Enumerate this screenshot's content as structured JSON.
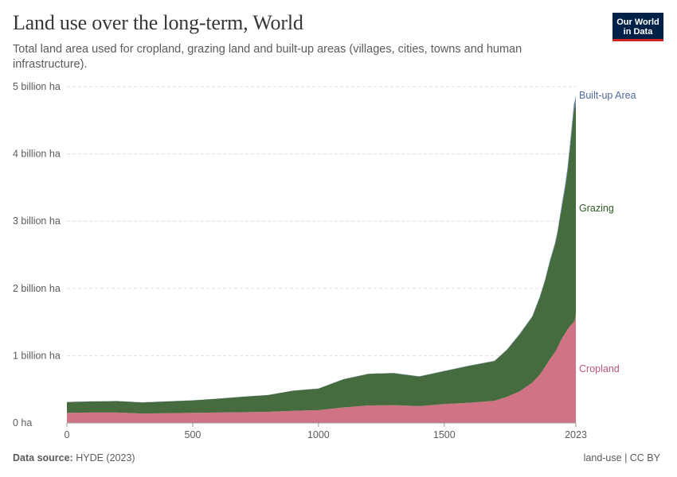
{
  "header": {
    "title": "Land use over the long-term, World",
    "subtitle": "Total land area used for cropland, grazing land and built-up areas (villages, cities, towns and human infrastructure).",
    "logo_line1": "Our World",
    "logo_line2": "in Data"
  },
  "footer": {
    "source_label": "Data source:",
    "source_value": "HYDE (2023)",
    "slug": "land-use | CC BY"
  },
  "chart_data": {
    "type": "area",
    "stacked": true,
    "title": "Land use over the long-term, World",
    "xlabel": "",
    "ylabel": "",
    "xlim": [
      0,
      2023
    ],
    "ylim": [
      0,
      5000000000
    ],
    "y_ticks": [
      {
        "value": 0,
        "label": "0 ha"
      },
      {
        "value": 1000000000,
        "label": "1 billion ha"
      },
      {
        "value": 2000000000,
        "label": "2 billion ha"
      },
      {
        "value": 3000000000,
        "label": "3 billion ha"
      },
      {
        "value": 4000000000,
        "label": "4 billion ha"
      },
      {
        "value": 5000000000,
        "label": "5 billion ha"
      }
    ],
    "x_ticks": [
      {
        "value": 0,
        "label": "0"
      },
      {
        "value": 500,
        "label": "500"
      },
      {
        "value": 1000,
        "label": "1000"
      },
      {
        "value": 1500,
        "label": "1500"
      },
      {
        "value": 2023,
        "label": "2023"
      }
    ],
    "grid": "horizontal dashed",
    "legend": "inline labels at right end",
    "x": [
      0,
      100,
      200,
      300,
      400,
      500,
      600,
      700,
      800,
      900,
      1000,
      1100,
      1200,
      1300,
      1400,
      1500,
      1600,
      1700,
      1750,
      1800,
      1850,
      1880,
      1900,
      1920,
      1940,
      1950,
      1960,
      1970,
      1980,
      1990,
      2000,
      2010,
      2015,
      2020,
      2023
    ],
    "series": [
      {
        "name": "Cropland",
        "color": "#d07385",
        "label_color": "#c05672",
        "values": [
          150000000,
          155000000,
          155000000,
          140000000,
          145000000,
          150000000,
          155000000,
          160000000,
          165000000,
          180000000,
          190000000,
          230000000,
          260000000,
          265000000,
          250000000,
          280000000,
          300000000,
          330000000,
          390000000,
          470000000,
          600000000,
          720000000,
          830000000,
          950000000,
          1050000000,
          1120000000,
          1200000000,
          1270000000,
          1330000000,
          1390000000,
          1440000000,
          1480000000,
          1500000000,
          1550000000,
          1610000000
        ]
      },
      {
        "name": "Grazing",
        "color": "#466b3f",
        "label_color": "#2f5827",
        "values": [
          160000000,
          165000000,
          170000000,
          165000000,
          175000000,
          185000000,
          205000000,
          230000000,
          250000000,
          300000000,
          320000000,
          420000000,
          470000000,
          475000000,
          440000000,
          490000000,
          550000000,
          590000000,
          700000000,
          850000000,
          980000000,
          1150000000,
          1280000000,
          1450000000,
          1600000000,
          1700000000,
          1850000000,
          2000000000,
          2150000000,
          2350000000,
          2650000000,
          2980000000,
          3150000000,
          3160000000,
          3160000000
        ]
      },
      {
        "name": "Built-up Area",
        "color": "#6d87b0",
        "label_color": "#4c6a9c",
        "values": [
          2000000,
          2000000,
          2000000,
          2000000,
          2000000,
          2000000,
          2000000,
          2000000,
          2000000,
          2000000,
          3000000,
          3000000,
          3000000,
          3000000,
          3000000,
          4000000,
          4000000,
          5000000,
          6000000,
          7000000,
          9000000,
          12000000,
          15000000,
          20000000,
          25000000,
          30000000,
          38000000,
          46000000,
          55000000,
          65000000,
          75000000,
          85000000,
          90000000,
          95000000,
          100000000
        ]
      }
    ]
  }
}
